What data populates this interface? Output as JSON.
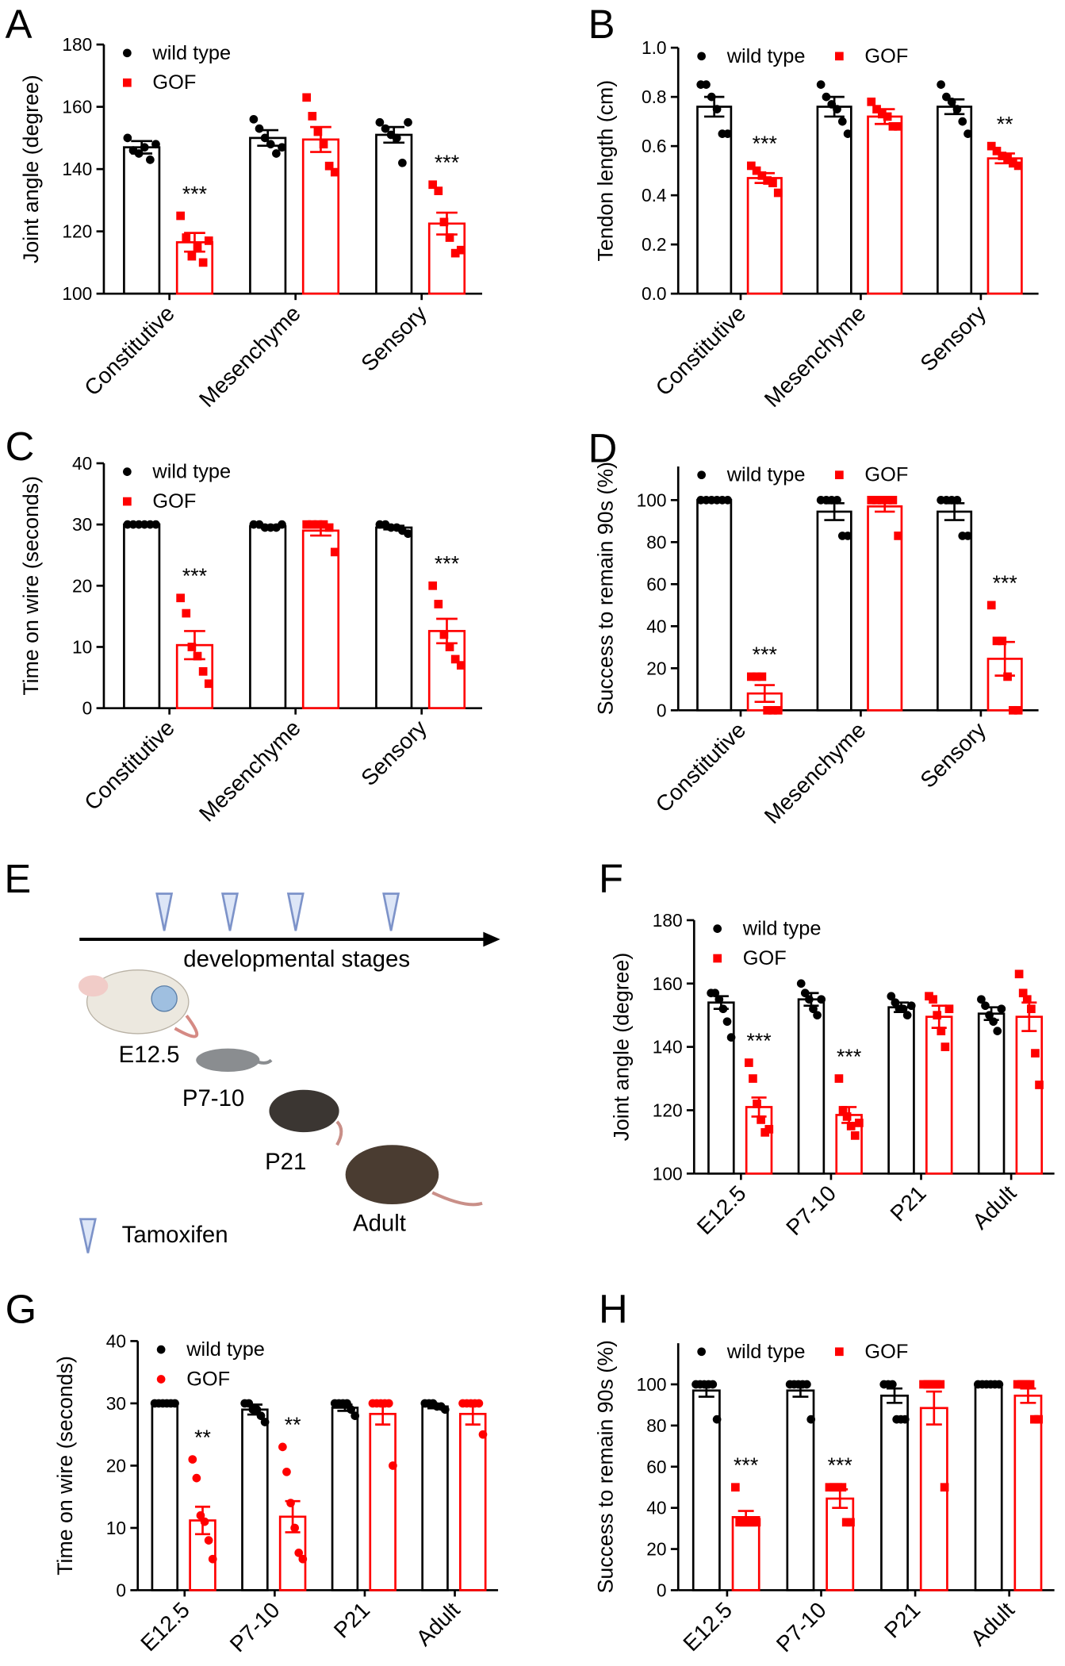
{
  "chart_data": [
    {
      "type": "bar",
      "panel": "A",
      "ylabel": "Joint angle (degree)",
      "categories": [
        "Constitutive",
        "Mesenchyme",
        "Sensory"
      ],
      "ylim": [
        100,
        180
      ],
      "yticks": [
        100,
        120,
        140,
        160,
        180
      ],
      "legend": "upper left",
      "legend_layout": "vertical",
      "series": [
        {
          "name": "wild type",
          "color": "#000000",
          "marker": "circle",
          "values": [
            147,
            150,
            151
          ],
          "errors": [
            2,
            2.5,
            2.5
          ],
          "points": [
            [
              150,
              146,
              145,
              147,
              143,
              148
            ],
            [
              156,
              153,
              150,
              148,
              145,
              147
            ],
            [
              155,
              153,
              151,
              150,
              142,
              155
            ]
          ]
        },
        {
          "name": "GOF",
          "color": "#ff0000",
          "marker": "square",
          "values": [
            116.5,
            149.5,
            122.5
          ],
          "errors": [
            3,
            4,
            3.5
          ],
          "points": [
            [
              125,
              118,
              112,
              115,
              110,
              117
            ],
            [
              163,
              157,
              152,
              148,
              141,
              139
            ],
            [
              135,
              133,
              123,
              118,
              113,
              114
            ]
          ],
          "significance": [
            "***",
            null,
            "***"
          ]
        }
      ]
    },
    {
      "type": "bar",
      "panel": "B",
      "ylabel": "Tendon length (cm)",
      "categories": [
        "Constitutive",
        "Mesenchyme",
        "Sensory"
      ],
      "ylim": [
        0,
        1
      ],
      "yticks": [
        {
          "value": 0,
          "label": "0.0"
        },
        0.2,
        0.4,
        0.6,
        0.8,
        {
          "value": 1,
          "label": "1.0"
        }
      ],
      "legend": "upper left",
      "legend_layout": "horizontal",
      "series": [
        {
          "name": "wild type",
          "color": "#000000",
          "marker": "circle",
          "values": [
            0.76,
            0.76,
            0.76
          ],
          "errors": [
            0.04,
            0.04,
            0.03
          ],
          "points": [
            [
              0.85,
              0.85,
              0.8,
              0.75,
              0.65,
              0.65
            ],
            [
              0.85,
              0.8,
              0.77,
              0.75,
              0.7,
              0.65
            ],
            [
              0.85,
              0.8,
              0.78,
              0.75,
              0.7,
              0.65
            ]
          ]
        },
        {
          "name": "GOF",
          "color": "#ff0000",
          "marker": "square",
          "values": [
            0.47,
            0.72,
            0.55
          ],
          "errors": [
            0.02,
            0.03,
            0.02
          ],
          "points": [
            [
              0.52,
              0.5,
              0.48,
              0.46,
              0.45,
              0.41
            ],
            [
              0.78,
              0.75,
              0.73,
              0.72,
              0.68,
              0.68
            ],
            [
              0.6,
              0.58,
              0.56,
              0.55,
              0.53,
              0.52
            ]
          ],
          "significance": [
            "***",
            null,
            "**"
          ]
        }
      ]
    },
    {
      "type": "bar",
      "panel": "C",
      "ylabel": "Time on wire (seconds)",
      "categories": [
        "Constitutive",
        "Mesenchyme",
        "Sensory"
      ],
      "ylim": [
        0,
        40
      ],
      "yticks": [
        0,
        10,
        20,
        30,
        40
      ],
      "legend": "upper left",
      "legend_layout": "vertical",
      "series": [
        {
          "name": "wild type",
          "color": "#000000",
          "marker": "circle",
          "values": [
            30,
            29.7,
            29.5
          ],
          "errors": [
            0.1,
            0.2,
            0.3
          ],
          "points": [
            [
              30,
              30,
              30,
              30,
              30,
              30
            ],
            [
              30,
              30,
              29.5,
              29.5,
              29.5,
              30
            ],
            [
              30,
              30,
              29.5,
              29.5,
              29,
              28.5
            ]
          ]
        },
        {
          "name": "GOF",
          "color": "#ff0000",
          "marker": "square",
          "values": [
            10.3,
            29,
            12.6
          ],
          "errors": [
            2.3,
            0.8,
            2
          ],
          "points": [
            [
              18,
              15.5,
              10,
              8.5,
              6,
              4
            ],
            [
              30,
              30,
              30,
              30,
              29.5,
              25.5
            ],
            [
              20,
              17,
              12,
              10,
              8,
              7
            ]
          ],
          "significance": [
            "***",
            null,
            "***"
          ]
        }
      ]
    },
    {
      "type": "bar",
      "panel": "D",
      "ylabel": "Success to remain 90s (%)",
      "categories": [
        "Constitutive",
        "Mesenchyme",
        "Sensory"
      ],
      "ylim": [
        0,
        116
      ],
      "yticks": [
        0,
        20,
        40,
        60,
        80,
        100
      ],
      "legend": "upper left",
      "legend_layout": "horizontal",
      "series": [
        {
          "name": "wild type",
          "color": "#000000",
          "marker": "circle",
          "values": [
            100,
            94.5,
            94.5
          ],
          "errors": [
            0,
            4,
            4
          ],
          "points": [
            [
              100,
              100,
              100,
              100,
              100,
              100
            ],
            [
              100,
              100,
              100,
              100,
              83,
              83
            ],
            [
              100,
              100,
              100,
              100,
              83,
              83
            ]
          ]
        },
        {
          "name": "GOF",
          "color": "#ff0000",
          "marker": "square",
          "values": [
            8,
            97,
            24.5
          ],
          "errors": [
            4,
            2.5,
            8
          ],
          "points": [
            [
              16,
              16,
              16,
              0,
              0,
              0
            ],
            [
              100,
              100,
              100,
              100,
              100,
              83
            ],
            [
              50,
              33,
              33,
              16,
              0,
              0
            ]
          ],
          "significance": [
            "***",
            null,
            "***"
          ]
        }
      ]
    },
    {
      "type": "bar",
      "panel": "F",
      "ylabel": "Joint angle (degree)",
      "categories": [
        "E12.5",
        "P7-10",
        "P21",
        "Adult"
      ],
      "ylim": [
        100,
        180
      ],
      "yticks": [
        100,
        120,
        140,
        160,
        180
      ],
      "legend": "upper left",
      "legend_layout": "vertical",
      "series": [
        {
          "name": "wild type",
          "color": "#000000",
          "marker": "circle",
          "values": [
            154,
            155,
            152.5,
            150.5
          ],
          "errors": [
            2,
            2,
            1.5,
            2
          ],
          "points": [
            [
              157,
              157,
              155,
              152,
              148,
              143
            ],
            [
              160,
              157,
              155,
              152,
              150,
              155
            ],
            [
              156,
              154,
              152,
              152,
              150,
              153
            ],
            [
              155,
              153,
              150,
              148,
              145,
              152
            ]
          ]
        },
        {
          "name": "GOF",
          "color": "#ff0000",
          "marker": "square",
          "values": [
            121,
            118.5,
            149.5,
            149.5
          ],
          "errors": [
            3,
            2.5,
            3.5,
            4.5
          ],
          "points": [
            [
              135,
              130,
              122,
              117,
              113,
              114
            ],
            [
              130,
              120,
              118,
              115,
              112,
              116
            ],
            [
              156,
              155,
              150,
              145,
              140,
              152
            ],
            [
              163,
              157,
              155,
              152,
              138,
              128
            ]
          ],
          "significance": [
            "***",
            "***",
            null,
            null
          ]
        }
      ]
    },
    {
      "type": "bar",
      "panel": "G",
      "ylabel": "Time on wire (seconds)",
      "categories": [
        "E12.5",
        "P7-10",
        "P21",
        "Adult"
      ],
      "ylim": [
        0,
        40
      ],
      "yticks": [
        0,
        10,
        20,
        30,
        40
      ],
      "legend": "upper left",
      "legend_layout": "vertical",
      "series": [
        {
          "name": "wild type",
          "color": "#000000",
          "marker": "circle",
          "values": [
            30,
            29,
            29.3,
            29.5
          ],
          "errors": [
            0,
            0.8,
            0.5,
            0.3
          ],
          "points": [
            [
              30,
              30,
              30,
              30,
              30,
              30
            ],
            [
              30,
              30,
              29,
              29,
              28,
              27
            ],
            [
              30,
              30,
              30,
              30,
              29,
              28
            ],
            [
              30,
              30,
              30,
              29.5,
              29.5,
              29
            ]
          ]
        },
        {
          "name": "GOF",
          "color": "#ff0000",
          "marker": "circle",
          "values": [
            11.2,
            11.8,
            28.3,
            28.3
          ],
          "errors": [
            2.2,
            2.5,
            1.7,
            1.7
          ],
          "points": [
            [
              21,
              18,
              12,
              11,
              8,
              5
            ],
            [
              23,
              19,
              14,
              10,
              6,
              5
            ],
            [
              30,
              30,
              30,
              30,
              30,
              20
            ],
            [
              30,
              30,
              30,
              30,
              30,
              25
            ]
          ],
          "significance": [
            "**",
            "**",
            null,
            null
          ]
        }
      ]
    },
    {
      "type": "bar",
      "panel": "H",
      "ylabel": "Success to remain 90s (%)",
      "categories": [
        "E12.5",
        "P7-10",
        "P21",
        "Adult"
      ],
      "ylim": [
        0,
        120
      ],
      "yticks": [
        0,
        20,
        40,
        60,
        80,
        100
      ],
      "legend": "upper left",
      "legend_layout": "horizontal",
      "series": [
        {
          "name": "wild type",
          "color": "#000000",
          "marker": "circle",
          "values": [
            97,
            97,
            94.5,
            100
          ],
          "errors": [
            3,
            3,
            3.5,
            0
          ],
          "points": [
            [
              100,
              100,
              100,
              100,
              100,
              83
            ],
            [
              100,
              100,
              100,
              100,
              100,
              83
            ],
            [
              100,
              100,
              100,
              83,
              83,
              83
            ],
            [
              100,
              100,
              100,
              100,
              100,
              100
            ]
          ]
        },
        {
          "name": "GOF",
          "color": "#ff0000",
          "marker": "square",
          "values": [
            35.5,
            44.5,
            88.5,
            94.5
          ],
          "errors": [
            3,
            4.5,
            8,
            3.5
          ],
          "points": [
            [
              50,
              33,
              33,
              33,
              33,
              33
            ],
            [
              50,
              50,
              50,
              50,
              33,
              33
            ],
            [
              100,
              100,
              100,
              100,
              100,
              50
            ],
            [
              100,
              100,
              100,
              100,
              83,
              83
            ]
          ],
          "significance": [
            "***",
            "***",
            null,
            null
          ]
        }
      ]
    }
  ],
  "panel_e": {
    "label": "E",
    "timeline": "developmental stages",
    "stages": [
      "E12.5",
      "P7-10",
      "P21",
      "Adult"
    ],
    "legend": "Tamoxifen"
  }
}
